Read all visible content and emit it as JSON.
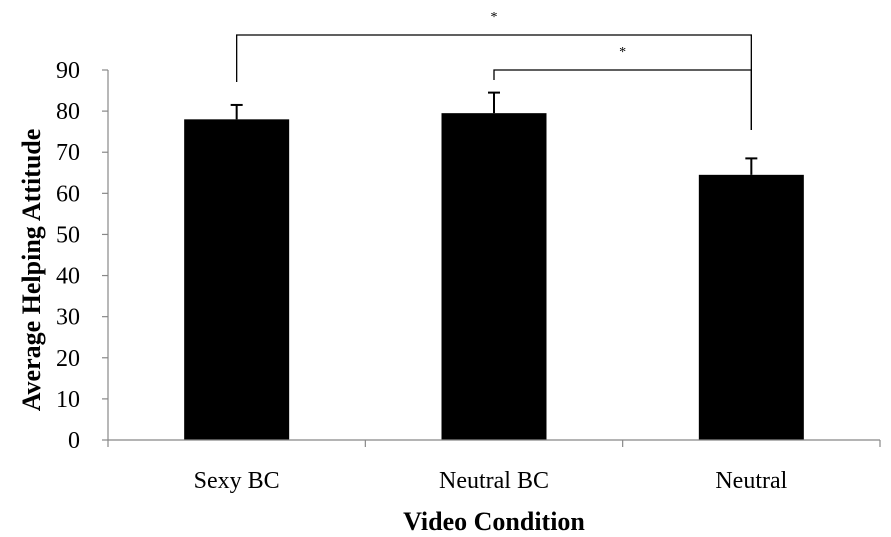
{
  "chart_data": {
    "type": "bar",
    "categories": [
      "Sexy BC",
      "Neutral BC",
      "Neutral"
    ],
    "values": [
      78,
      79.5,
      64.5
    ],
    "error_upper": [
      81.5,
      84.5,
      68.5
    ],
    "ylim": [
      0,
      90
    ],
    "yticks": [
      0,
      10,
      20,
      30,
      40,
      50,
      60,
      70,
      80,
      90
    ],
    "xlabel": "Video Condition",
    "ylabel": "Average Helping Attitude",
    "bar_color": "#000000",
    "grid": false,
    "significance": [
      {
        "from": 0,
        "to": 2,
        "label": "*"
      },
      {
        "from": 1,
        "to": 2,
        "label": "*"
      }
    ]
  }
}
